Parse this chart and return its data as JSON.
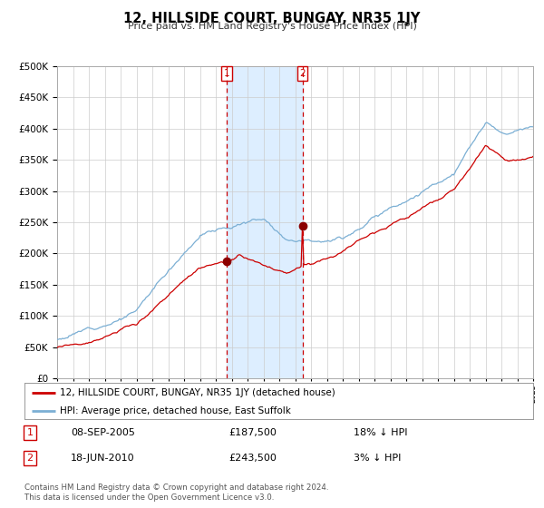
{
  "title": "12, HILLSIDE COURT, BUNGAY, NR35 1JY",
  "subtitle": "Price paid vs. HM Land Registry's House Price Index (HPI)",
  "legend_line1": "12, HILLSIDE COURT, BUNGAY, NR35 1JY (detached house)",
  "legend_line2": "HPI: Average price, detached house, East Suffolk",
  "sale1_date": "08-SEP-2005",
  "sale1_price": 187500,
  "sale1_hpi": "18% ↓ HPI",
  "sale2_date": "18-JUN-2010",
  "sale2_price": 243500,
  "sale2_hpi": "3% ↓ HPI",
  "footer": "Contains HM Land Registry data © Crown copyright and database right 2024.\nThis data is licensed under the Open Government Licence v3.0.",
  "hpi_color": "#7bafd4",
  "price_color": "#cc0000",
  "marker_color": "#8b0000",
  "vline_color": "#cc0000",
  "shade_color": "#ddeeff",
  "grid_color": "#cccccc",
  "bg_color": "#ffffff",
  "ylim": [
    0,
    500000
  ],
  "year_start": 1995,
  "year_end": 2025,
  "sale1_year": 2005.69,
  "sale2_year": 2010.46
}
